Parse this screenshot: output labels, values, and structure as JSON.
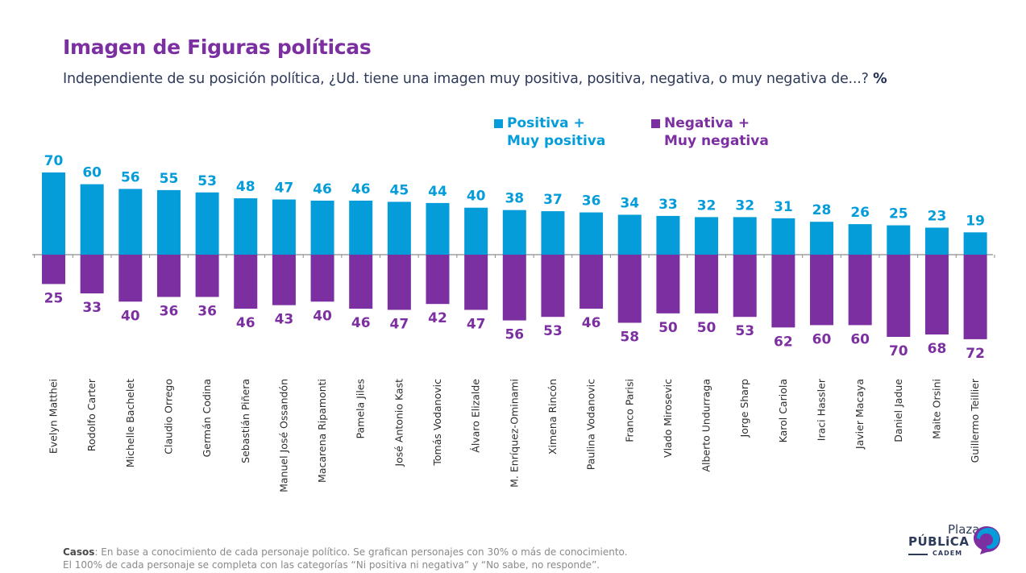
{
  "header": {
    "title": "Imagen de Figuras políticas",
    "subtitle": "Independiente de su posición política, ¿Ud. tiene una imagen muy positiva, positiva, negativa, o muy negativa de...?",
    "subtitle_unit": "%"
  },
  "legend": {
    "positive_line1": "Positiva +",
    "positive_line2": "Muy positiva",
    "negative_line1": "Negativa +",
    "negative_line2": "Muy negativa"
  },
  "colors": {
    "positive": "#049cd9",
    "negative": "#7b2fa0",
    "axis": "#8c8c8c",
    "label": "#2d2d2d"
  },
  "chart_data": {
    "type": "bar",
    "title": "Imagen de Figuras políticas",
    "xlabel": "",
    "ylabel": "%",
    "orientation": "diverging-vertical",
    "legend_position": "top-right",
    "grid": false,
    "categories": [
      "Evelyn Matthei",
      "Rodolfo Carter",
      "Michelle Bachelet",
      "Claudio Orrego",
      "Germán Codina",
      "Sebastián Piñera",
      "Manuel José Ossandón",
      "Macarena Ripamonti",
      "Pamela Jiles",
      "José Antonio Kast",
      "Tomás Vodanovic",
      "Álvaro Elizalde",
      "M. Enríquez-Ominami",
      "Ximena Rincón",
      "Paulina Vodanovic",
      "Franco Parisi",
      "Vlado Mirosevic",
      "Alberto Undurraga",
      "Jorge Sharp",
      "Karol Cariola",
      "Iraci Hassler",
      "Javier Macaya",
      "Daniel Jadue",
      "Maite Orsini",
      "Guillermo Teillier"
    ],
    "series": [
      {
        "name": "Positiva + Muy positiva",
        "values": [
          70,
          60,
          56,
          55,
          53,
          48,
          47,
          46,
          46,
          45,
          44,
          40,
          38,
          37,
          36,
          34,
          33,
          32,
          32,
          31,
          28,
          26,
          25,
          23,
          19
        ]
      },
      {
        "name": "Negativa + Muy negativa",
        "values": [
          25,
          33,
          40,
          36,
          36,
          46,
          43,
          40,
          46,
          47,
          42,
          47,
          56,
          53,
          46,
          58,
          50,
          50,
          53,
          62,
          60,
          60,
          70,
          68,
          72
        ]
      }
    ],
    "ylim": [
      -72,
      70
    ]
  },
  "footnote": {
    "label": "Casos",
    "line1": ": En base a conocimiento de cada personaje político. Se grafican personajes con 30% o más de conocimiento.",
    "line2": "El 100% de cada personaje se completa con las categorías “Ni positiva ni negativa” y “No sabe, no responde”."
  },
  "logo": {
    "line1": "Plaza",
    "line2": "PÚBLiCA",
    "line3": "CADEM"
  }
}
